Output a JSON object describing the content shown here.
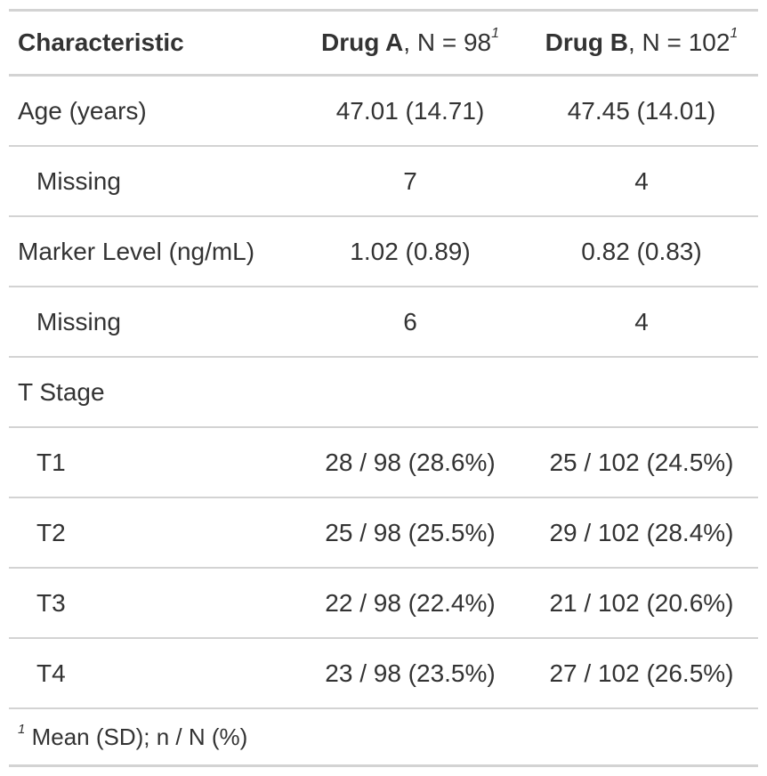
{
  "table": {
    "header": {
      "characteristic": "Characteristic",
      "drug_a": {
        "name": "Drug A",
        "n_text": ", N = 98",
        "footnote_mark": "1"
      },
      "drug_b": {
        "name": "Drug B",
        "n_text": ", N = 102",
        "footnote_mark": "1"
      }
    },
    "rows": [
      {
        "label": "Age (years)",
        "drug_a": "47.01 (14.71)",
        "drug_b": "47.45 (14.01)"
      },
      {
        "label": "Missing",
        "drug_a": "7",
        "drug_b": "4"
      },
      {
        "label": "Marker Level (ng/mL)",
        "drug_a": "1.02 (0.89)",
        "drug_b": "0.82 (0.83)"
      },
      {
        "label": "Missing",
        "drug_a": "6",
        "drug_b": "4"
      },
      {
        "label": "T Stage",
        "drug_a": "",
        "drug_b": ""
      },
      {
        "label": "T1",
        "drug_a": "28 / 98 (28.6%)",
        "drug_b": "25 / 102 (24.5%)"
      },
      {
        "label": "T2",
        "drug_a": "25 / 98 (25.5%)",
        "drug_b": "29 / 102 (28.4%)"
      },
      {
        "label": "T3",
        "drug_a": "22 / 98 (22.4%)",
        "drug_b": "21 / 102 (20.6%)"
      },
      {
        "label": "T4",
        "drug_a": "23 / 98 (23.5%)",
        "drug_b": "27 / 102 (26.5%)"
      }
    ],
    "footnote": {
      "mark": "1",
      "text": "Mean (SD); n / N (%)"
    }
  }
}
